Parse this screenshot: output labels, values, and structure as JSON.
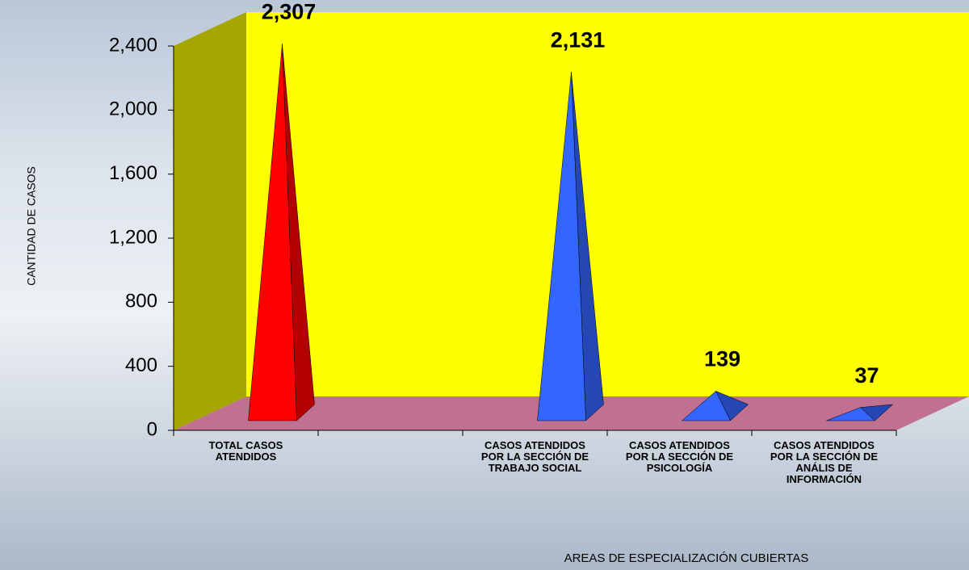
{
  "chart_data": {
    "type": "pyramid3d",
    "x_label": "AREAS DE ESPECIALIZACIÓN  CUBIERTAS",
    "y_label": "CANTIDAD  DE CASOS",
    "categories": [
      "TOTAL CASOS\nATENDIDOS",
      null,
      "CASOS ATENDIDOS\nPOR LA SECCIÓN DE\nTRABAJO SOCIAL",
      "CASOS ATENDIDOS\nPOR LA SECCIÓN DE\nPSICOLOGÍA",
      "CASOS ATENDIDOS\nPOR LA SECCIÓN DE\nANÁLIS DE\nINFORMACIÓN"
    ],
    "values": [
      2307,
      null,
      2131,
      139,
      37
    ],
    "value_labels": [
      "2,307",
      null,
      "2,131",
      "139",
      "37"
    ],
    "colors": [
      "#ff0000",
      null,
      "#3366ff",
      "#3366ff",
      "#3366ff"
    ],
    "ylim": [
      0,
      2400
    ],
    "yticks": [
      0,
      400,
      800,
      {
        "value": 1200,
        "label": "1,200"
      },
      {
        "value": 1600,
        "label": "1,600"
      },
      {
        "value": 2000,
        "label": "2,000"
      },
      {
        "value": 2400,
        "label": "2,400"
      }
    ],
    "wall_color": "#ffff00",
    "side_wall_color": "#a6a600",
    "floor_color": "#c07090"
  }
}
